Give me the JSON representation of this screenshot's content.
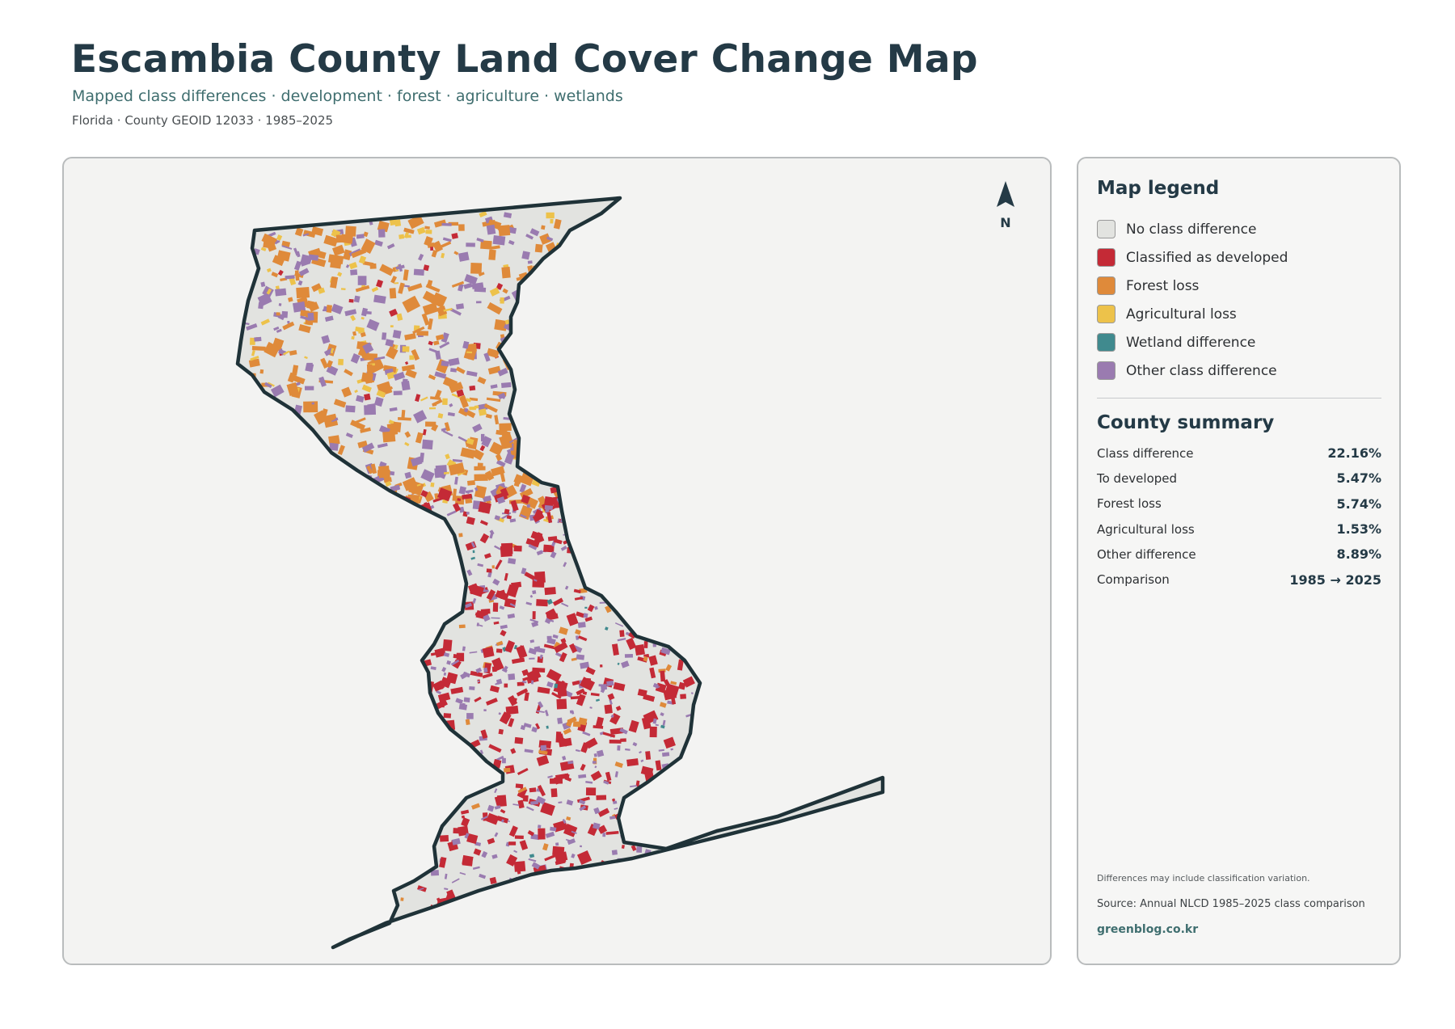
{
  "header": {
    "title": "Escambia County Land Cover Change Map",
    "subtitle": "Mapped class differences · development · forest · agriculture · wetlands",
    "meta": "Florida · County GEOID 12033 · 1985–2025"
  },
  "map": {
    "north_label": "N",
    "colors": {
      "no_difference": "#e2e3e0",
      "developed": "#c42a36",
      "forest_loss": "#df8a3a",
      "agricultural_loss": "#edc24a",
      "wetland_difference": "#408a8e",
      "other_difference": "#9a7bb0",
      "boundary": "#1f3238",
      "panel_background": "#f3f3f2"
    }
  },
  "legend": {
    "title": "Map legend",
    "items": [
      {
        "label": "No class difference",
        "color": "#e2e3e0"
      },
      {
        "label": "Classified as developed",
        "color": "#c42a36"
      },
      {
        "label": "Forest loss",
        "color": "#df8a3a"
      },
      {
        "label": "Agricultural loss",
        "color": "#edc24a"
      },
      {
        "label": "Wetland difference",
        "color": "#408a8e"
      },
      {
        "label": "Other class difference",
        "color": "#9a7bb0"
      }
    ]
  },
  "summary": {
    "title": "County summary",
    "rows": [
      {
        "label": "Class difference",
        "value": "22.16%"
      },
      {
        "label": "To developed",
        "value": "5.47%"
      },
      {
        "label": "Forest loss",
        "value": "5.74%"
      },
      {
        "label": "Agricultural loss",
        "value": "1.53%"
      },
      {
        "label": "Other difference",
        "value": "8.89%"
      },
      {
        "label": "Comparison",
        "value": "1985 → 2025"
      }
    ]
  },
  "footer": {
    "note": "Differences may include classification variation.",
    "source": "Source: Annual NLCD 1985–2025 class comparison",
    "site": "greenblog.co.kr"
  }
}
